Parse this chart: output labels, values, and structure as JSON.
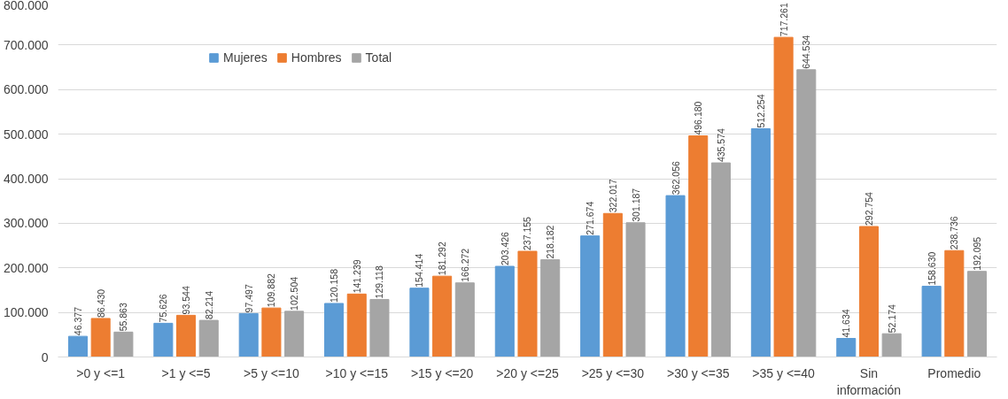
{
  "chart_data": {
    "type": "bar",
    "categories": [
      ">0 y <=1",
      ">1 y <=5",
      ">5 y <=10",
      ">10 y <=15",
      ">15 y <=20",
      ">20 y <=25",
      ">25 y <=30",
      ">30 y <=35",
      ">35 y <=40",
      "Sin información",
      "Promedio"
    ],
    "series": [
      {
        "name": "Mujeres",
        "color": "#5b9bd5",
        "values": [
          46377,
          75626,
          97497,
          120158,
          154414,
          203426,
          271674,
          362056,
          512254,
          41634,
          158630
        ],
        "value_labels": [
          "46.377",
          "75.626",
          "97.497",
          "120.158",
          "154.414",
          "203.426",
          "271.674",
          "362.056",
          "512.254",
          "41.634",
          "158.630"
        ]
      },
      {
        "name": "Hombres",
        "color": "#ed7d31",
        "values": [
          86430,
          93544,
          109882,
          141239,
          181292,
          237155,
          322017,
          496180,
          717261,
          292754,
          238736
        ],
        "value_labels": [
          "86.430",
          "93.544",
          "109.882",
          "141.239",
          "181.292",
          "237.155",
          "322.017",
          "496.180",
          "717.261",
          "292.754",
          "238.736"
        ]
      },
      {
        "name": "Total",
        "color": "#a5a5a5",
        "values": [
          55863,
          82214,
          102504,
          129118,
          166272,
          218182,
          301187,
          435574,
          644534,
          52174,
          192095
        ],
        "value_labels": [
          "55.863",
          "82.214",
          "102.504",
          "129.118",
          "166.272",
          "218.182",
          "301.187",
          "435.574",
          "644.534",
          "52.174",
          "192.095"
        ]
      }
    ],
    "ylim": [
      0,
      800000
    ],
    "yticks": [
      {
        "value": 0,
        "label": "0"
      },
      {
        "value": 100000,
        "label": "100.000"
      },
      {
        "value": 200000,
        "label": "200.000"
      },
      {
        "value": 300000,
        "label": "300.000"
      },
      {
        "value": 400000,
        "label": "400.000"
      },
      {
        "value": 500000,
        "label": "500.000"
      },
      {
        "value": 600000,
        "label": "600.000"
      },
      {
        "value": 700000,
        "label": "700.000"
      },
      {
        "value": 800000,
        "label": "800.000"
      }
    ],
    "grid": "y",
    "legend": "top"
  }
}
